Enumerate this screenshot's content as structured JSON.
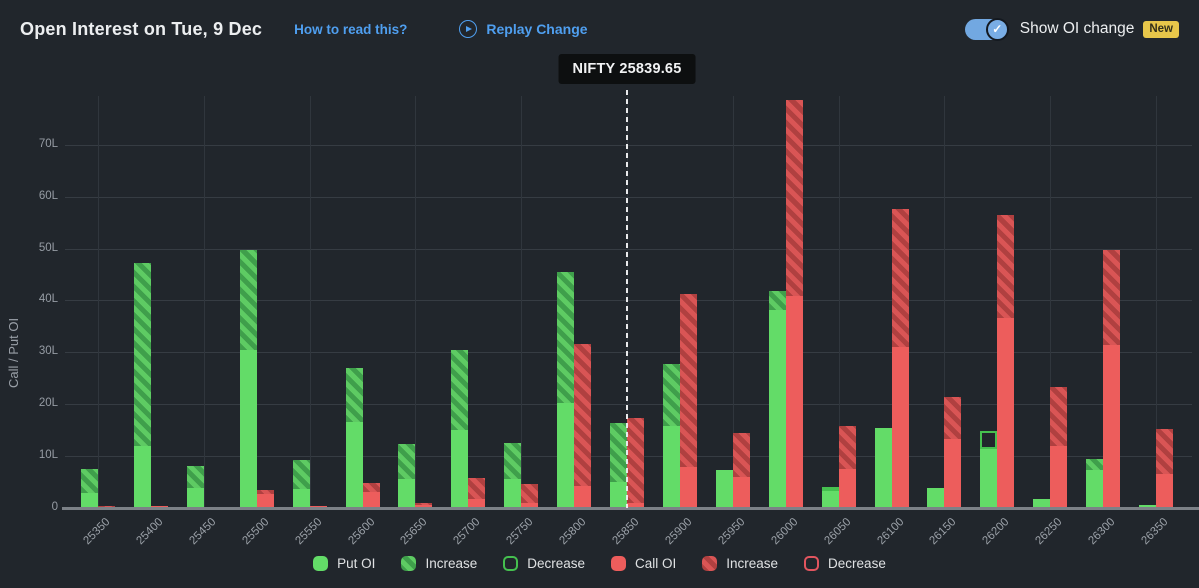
{
  "header": {
    "title": "Open Interest on Tue, 9 Dec",
    "how_to_read": "How to read this?",
    "replay": "Replay Change",
    "show_oi_change": "Show OI change",
    "new_badge": "New",
    "toggle_state": "on",
    "link_color": "#4f9ff0",
    "toggle_color": "#72a8e1",
    "badge_color": "#e7c64a"
  },
  "tooltip": {
    "label": "NIFTY 25839.65"
  },
  "legend": [
    {
      "label": "Put OI",
      "swatch": "put-solid"
    },
    {
      "label": "Increase",
      "swatch": "put-hatch"
    },
    {
      "label": "Decrease",
      "swatch": "put-outline"
    },
    {
      "label": "Call OI",
      "swatch": "call-solid"
    },
    {
      "label": "Increase",
      "swatch": "call-hatch"
    },
    {
      "label": "Decrease",
      "swatch": "call-outline"
    }
  ],
  "chart_data": {
    "type": "bar",
    "title": "Open Interest on Tue, 9 Dec",
    "ylabel": "Call / Put OI",
    "xlabel": "",
    "unit": "lakh (L)",
    "ylim": [
      0,
      80
    ],
    "yticks": [
      "0",
      "10L",
      "20L",
      "30L",
      "40L",
      "50L",
      "60L",
      "70L"
    ],
    "grid": true,
    "legend_position": "bottom",
    "nifty_marker": {
      "label": "NIFTY 25839.65",
      "value": 25839.65
    },
    "series_note": "total = bar top in lakhs; solid = plain portion; change portion = total - solid drawn hatched (increase) or hollow (decrease)",
    "bars": [
      {
        "strike": "25350",
        "put": {
          "total": 7.6,
          "solid": 2.8,
          "change": "increase"
        },
        "call": {
          "total": 0.3,
          "solid": 0.2,
          "change": "increase"
        }
      },
      {
        "strike": "25400",
        "put": {
          "total": 47.3,
          "solid": 12.0,
          "change": "increase"
        },
        "call": {
          "total": 0.4,
          "solid": 0.3,
          "change": "increase"
        }
      },
      {
        "strike": "25450",
        "put": {
          "total": 8.1,
          "solid": 3.9,
          "change": "increase"
        },
        "call": {
          "total": 0.2,
          "solid": 0.2,
          "change": "none"
        }
      },
      {
        "strike": "25500",
        "put": {
          "total": 49.7,
          "solid": 30.5,
          "change": "increase"
        },
        "call": {
          "total": 3.4,
          "solid": 2.6,
          "change": "increase"
        }
      },
      {
        "strike": "25550",
        "put": {
          "total": 9.3,
          "solid": 3.6,
          "change": "increase"
        },
        "call": {
          "total": 0.3,
          "solid": 0.3,
          "change": "none"
        }
      },
      {
        "strike": "25600",
        "put": {
          "total": 26.9,
          "solid": 16.6,
          "change": "increase"
        },
        "call": {
          "total": 4.9,
          "solid": 3.1,
          "change": "increase"
        }
      },
      {
        "strike": "25650",
        "put": {
          "total": 12.4,
          "solid": 5.5,
          "change": "increase"
        },
        "call": {
          "total": 0.9,
          "solid": 0.6,
          "change": "increase"
        }
      },
      {
        "strike": "25700",
        "put": {
          "total": 30.5,
          "solid": 15.0,
          "change": "increase"
        },
        "call": {
          "total": 5.8,
          "solid": 1.7,
          "change": "increase"
        }
      },
      {
        "strike": "25750",
        "put": {
          "total": 12.5,
          "solid": 5.5,
          "change": "increase"
        },
        "call": {
          "total": 4.6,
          "solid": 0.9,
          "change": "increase"
        }
      },
      {
        "strike": "25800",
        "put": {
          "total": 45.5,
          "solid": 20.3,
          "change": "increase"
        },
        "call": {
          "total": 31.6,
          "solid": 4.2,
          "change": "increase"
        }
      },
      {
        "strike": "25850",
        "put": {
          "total": 16.3,
          "solid": 5.1,
          "change": "increase"
        },
        "call": {
          "total": 17.3,
          "solid": 0.9,
          "change": "increase"
        }
      },
      {
        "strike": "25900",
        "put": {
          "total": 27.8,
          "solid": 15.8,
          "change": "increase"
        },
        "call": {
          "total": 41.2,
          "solid": 7.9,
          "change": "increase"
        }
      },
      {
        "strike": "25950",
        "put": {
          "total": 7.4,
          "solid": 7.4,
          "change": "none"
        },
        "call": {
          "total": 14.5,
          "solid": 6.0,
          "change": "increase"
        }
      },
      {
        "strike": "26000",
        "put": {
          "total": 41.8,
          "solid": 38.1,
          "change": "increase"
        },
        "call": {
          "total": 78.7,
          "solid": 40.8,
          "change": "increase"
        }
      },
      {
        "strike": "26050",
        "put": {
          "total": 4.1,
          "solid": 3.2,
          "change": "decrease"
        },
        "call": {
          "total": 15.8,
          "solid": 7.6,
          "change": "increase"
        }
      },
      {
        "strike": "26100",
        "put": {
          "total": 15.4,
          "solid": 15.4,
          "change": "none"
        },
        "call": {
          "total": 57.6,
          "solid": 31.0,
          "change": "increase"
        }
      },
      {
        "strike": "26150",
        "put": {
          "total": 3.8,
          "solid": 3.8,
          "change": "none"
        },
        "call": {
          "total": 21.4,
          "solid": 13.2,
          "change": "increase"
        }
      },
      {
        "strike": "26200",
        "put": {
          "total": 14.9,
          "solid": 11.3,
          "change": "decrease"
        },
        "call": {
          "total": 56.5,
          "solid": 36.6,
          "change": "increase"
        }
      },
      {
        "strike": "26250",
        "put": {
          "total": 1.7,
          "solid": 1.7,
          "change": "none"
        },
        "call": {
          "total": 23.3,
          "solid": 11.9,
          "change": "increase"
        }
      },
      {
        "strike": "26300",
        "put": {
          "total": 9.4,
          "solid": 7.4,
          "change": "increase"
        },
        "call": {
          "total": 49.8,
          "solid": 31.4,
          "change": "increase"
        }
      },
      {
        "strike": "26350",
        "put": {
          "total": 0.6,
          "solid": 0.6,
          "change": "none"
        },
        "call": {
          "total": 15.3,
          "solid": 6.5,
          "change": "increase"
        }
      }
    ],
    "colors": {
      "put_solid": "#63dc68",
      "put_increase": "#4caf50",
      "call_solid": "#ed5d5c",
      "call_increase": "#c44a4a",
      "background": "#21262c",
      "gridline": "#363c43"
    }
  }
}
